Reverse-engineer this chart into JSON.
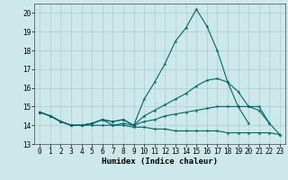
{
  "xlabel": "Humidex (Indice chaleur)",
  "xlim": [
    -0.5,
    23.5
  ],
  "ylim": [
    13,
    20.5
  ],
  "yticks": [
    13,
    14,
    15,
    16,
    17,
    18,
    19,
    20
  ],
  "xticks": [
    0,
    1,
    2,
    3,
    4,
    5,
    6,
    7,
    8,
    9,
    10,
    11,
    12,
    13,
    14,
    15,
    16,
    17,
    18,
    19,
    20,
    21,
    22,
    23
  ],
  "background_color": "#cce8ea",
  "grid_color": "#aacccc",
  "line_color": "#006666",
  "line1": [
    14.7,
    14.5,
    14.2,
    14.0,
    14.0,
    14.1,
    14.3,
    14.0,
    14.1,
    14.0,
    15.4,
    16.3,
    17.3,
    18.5,
    19.2,
    20.2,
    19.3,
    18.0,
    16.3,
    15.0,
    14.1,
    null,
    null,
    null
  ],
  "line2": [
    14.7,
    14.5,
    14.2,
    14.0,
    14.0,
    14.1,
    14.3,
    14.2,
    14.3,
    14.0,
    14.5,
    14.8,
    15.1,
    15.4,
    15.7,
    16.1,
    16.4,
    16.5,
    16.3,
    15.8,
    15.0,
    14.8,
    14.1,
    null
  ],
  "line3": [
    14.7,
    14.5,
    14.2,
    14.0,
    14.0,
    14.1,
    14.3,
    14.2,
    14.3,
    14.0,
    14.2,
    14.3,
    14.5,
    14.6,
    14.7,
    14.8,
    14.9,
    15.0,
    15.0,
    15.0,
    15.0,
    15.0,
    14.1,
    13.5
  ],
  "line4": [
    14.7,
    14.5,
    14.2,
    14.0,
    14.0,
    14.0,
    14.0,
    14.0,
    14.0,
    13.9,
    13.9,
    13.8,
    13.8,
    13.7,
    13.7,
    13.7,
    13.7,
    13.7,
    13.6,
    13.6,
    13.6,
    13.6,
    13.6,
    13.5
  ]
}
